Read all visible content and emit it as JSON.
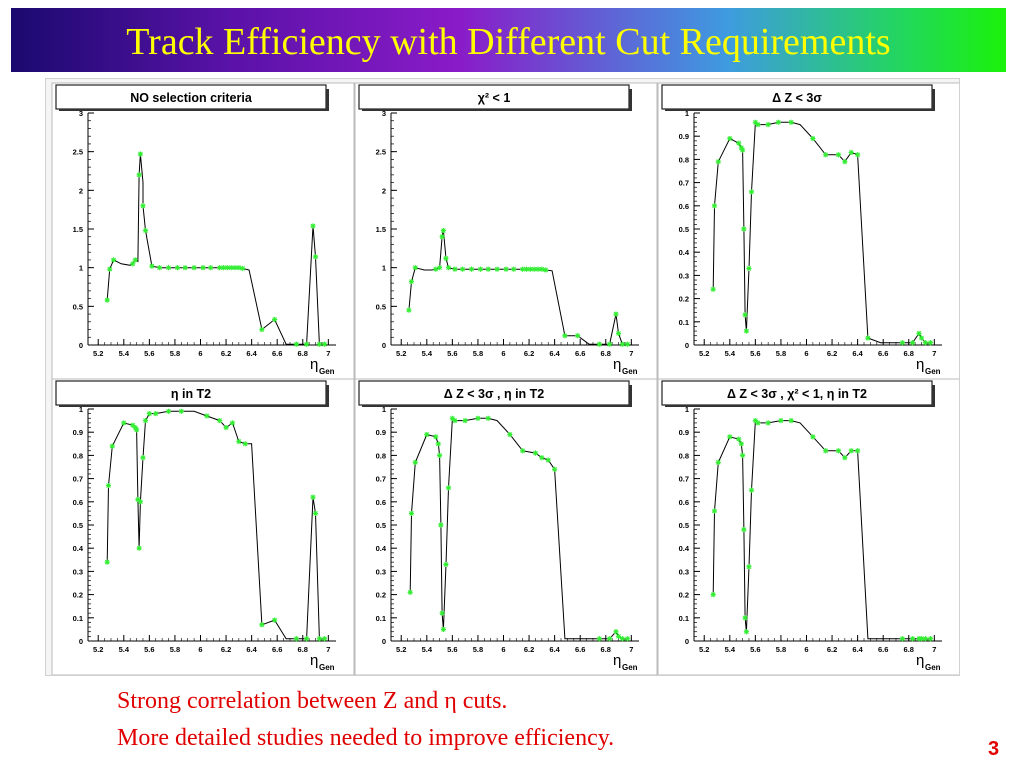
{
  "slide": {
    "title": "Track Efficiency with Different Cut Requirements",
    "notes": [
      "Strong correlation between Z and η cuts.",
      "More detailed studies needed to improve efficiency."
    ],
    "page_number": "3",
    "colors": {
      "title": "#ffff00",
      "notes": "#e00000",
      "markers": "#33ee33",
      "line": "#000000"
    }
  },
  "chart_data": [
    {
      "type": "line",
      "title": "NO selection criteria",
      "xlabel": "η",
      "xlabel_sub": "Gen",
      "xlim": [
        5.12,
        7.06
      ],
      "ylim": [
        0,
        3
      ],
      "xticks": [
        "5.2",
        "5.4",
        "5.6",
        "5.8",
        "6",
        "6.2",
        "6.4",
        "6.6",
        "6.8",
        "7"
      ],
      "yticks": [
        "0",
        "0.5",
        "1",
        "1.5",
        "2",
        "2.5",
        "3"
      ],
      "x": [
        5.27,
        5.29,
        5.32,
        5.38,
        5.45,
        5.47,
        5.49,
        5.51,
        5.52,
        5.53,
        5.55,
        5.55,
        5.57,
        5.62,
        5.68,
        5.75,
        5.82,
        5.88,
        5.95,
        6.02,
        6.08,
        6.15,
        6.18,
        6.21,
        6.24,
        6.27,
        6.3,
        6.33,
        6.38,
        6.48,
        6.58,
        6.67,
        6.75,
        6.83,
        6.88,
        6.9,
        6.93,
        6.97
      ],
      "y": [
        0.58,
        0.98,
        1.1,
        1.05,
        1.03,
        1.05,
        1.1,
        1.08,
        2.2,
        2.47,
        2.1,
        1.8,
        1.48,
        1.02,
        1.0,
        1.0,
        1.0,
        1.0,
        1.0,
        1.0,
        1.0,
        1.0,
        1.0,
        1.0,
        1.0,
        1.0,
        1.0,
        0.99,
        0.97,
        0.2,
        0.33,
        0.01,
        0.01,
        0.01,
        1.54,
        1.14,
        0.01,
        0.01
      ],
      "marker_points": [
        [
          5.27,
          0.58
        ],
        [
          5.29,
          0.98
        ],
        [
          5.32,
          1.1
        ],
        [
          5.47,
          1.05
        ],
        [
          5.49,
          1.1
        ],
        [
          5.52,
          2.2
        ],
        [
          5.53,
          2.47
        ],
        [
          5.55,
          1.8
        ],
        [
          5.57,
          1.48
        ],
        [
          5.62,
          1.02
        ],
        [
          5.68,
          1.0
        ],
        [
          5.75,
          1.0
        ],
        [
          5.82,
          1.0
        ],
        [
          5.88,
          1.0
        ],
        [
          5.95,
          1.0
        ],
        [
          6.02,
          1.0
        ],
        [
          6.08,
          1.0
        ],
        [
          6.15,
          1.0
        ],
        [
          6.18,
          1.0
        ],
        [
          6.21,
          1.0
        ],
        [
          6.24,
          1.0
        ],
        [
          6.27,
          1.0
        ],
        [
          6.3,
          1.0
        ],
        [
          6.33,
          0.99
        ],
        [
          6.48,
          0.2
        ],
        [
          6.58,
          0.33
        ],
        [
          6.75,
          0.01
        ],
        [
          6.83,
          0.01
        ],
        [
          6.88,
          1.54
        ],
        [
          6.9,
          1.14
        ],
        [
          6.93,
          0.01
        ],
        [
          6.97,
          0.01
        ]
      ]
    },
    {
      "type": "line",
      "title": "χ² < 1",
      "xlabel": "η",
      "xlabel_sub": "Gen",
      "xlim": [
        5.12,
        7.06
      ],
      "ylim": [
        0,
        3
      ],
      "xticks": [
        "5.2",
        "5.4",
        "5.6",
        "5.8",
        "6",
        "6.2",
        "6.4",
        "6.6",
        "6.8",
        "7"
      ],
      "yticks": [
        "0",
        "0.5",
        "1",
        "1.5",
        "2",
        "2.5",
        "3"
      ],
      "x": [
        5.26,
        5.28,
        5.31,
        5.38,
        5.44,
        5.47,
        5.5,
        5.52,
        5.53,
        5.55,
        5.57,
        5.62,
        5.68,
        5.75,
        5.82,
        5.88,
        5.95,
        6.02,
        6.08,
        6.15,
        6.18,
        6.21,
        6.24,
        6.27,
        6.3,
        6.33,
        6.38,
        6.48,
        6.58,
        6.67,
        6.75,
        6.83,
        6.88,
        6.9,
        6.93,
        6.97
      ],
      "y": [
        0.45,
        0.82,
        1.0,
        0.97,
        0.97,
        0.98,
        1.0,
        1.4,
        1.48,
        1.12,
        1.0,
        0.98,
        0.98,
        0.98,
        0.98,
        0.98,
        0.98,
        0.98,
        0.98,
        0.98,
        0.98,
        0.98,
        0.98,
        0.98,
        0.98,
        0.97,
        0.96,
        0.12,
        0.12,
        0.01,
        0.01,
        0.01,
        0.4,
        0.15,
        0.01,
        0.01
      ],
      "marker_points": [
        [
          5.26,
          0.45
        ],
        [
          5.28,
          0.82
        ],
        [
          5.31,
          1.0
        ],
        [
          5.47,
          0.98
        ],
        [
          5.5,
          1.0
        ],
        [
          5.52,
          1.4
        ],
        [
          5.53,
          1.48
        ],
        [
          5.55,
          1.12
        ],
        [
          5.57,
          1.0
        ],
        [
          5.62,
          0.98
        ],
        [
          5.68,
          0.98
        ],
        [
          5.75,
          0.98
        ],
        [
          5.82,
          0.98
        ],
        [
          5.88,
          0.98
        ],
        [
          5.95,
          0.98
        ],
        [
          6.02,
          0.98
        ],
        [
          6.08,
          0.98
        ],
        [
          6.15,
          0.98
        ],
        [
          6.18,
          0.98
        ],
        [
          6.21,
          0.98
        ],
        [
          6.24,
          0.98
        ],
        [
          6.27,
          0.98
        ],
        [
          6.3,
          0.98
        ],
        [
          6.33,
          0.97
        ],
        [
          6.48,
          0.12
        ],
        [
          6.58,
          0.12
        ],
        [
          6.75,
          0.01
        ],
        [
          6.83,
          0.01
        ],
        [
          6.88,
          0.4
        ],
        [
          6.9,
          0.15
        ],
        [
          6.93,
          0.01
        ],
        [
          6.97,
          0.01
        ]
      ]
    },
    {
      "type": "line",
      "title": "Δ Z < 3σ",
      "xlabel": "η",
      "xlabel_sub": "Gen",
      "xlim": [
        5.12,
        7.06
      ],
      "ylim": [
        0,
        1
      ],
      "xticks": [
        "5.2",
        "5.4",
        "5.6",
        "5.8",
        "6",
        "6.2",
        "6.4",
        "6.6",
        "6.8",
        "7"
      ],
      "yticks": [
        "0",
        "0.1",
        "0.2",
        "0.3",
        "0.4",
        "0.5",
        "0.6",
        "0.7",
        "0.8",
        "0.9",
        "1"
      ],
      "x": [
        5.27,
        5.28,
        5.31,
        5.4,
        5.47,
        5.49,
        5.5,
        5.51,
        5.52,
        5.53,
        5.55,
        5.57,
        5.6,
        5.62,
        5.7,
        5.78,
        5.88,
        5.95,
        6.05,
        6.15,
        6.25,
        6.3,
        6.35,
        6.4,
        6.48,
        6.58,
        6.67,
        6.75,
        6.83,
        6.88,
        6.9,
        6.93,
        6.97
      ],
      "y": [
        0.24,
        0.6,
        0.79,
        0.89,
        0.87,
        0.85,
        0.84,
        0.5,
        0.13,
        0.06,
        0.33,
        0.66,
        0.96,
        0.95,
        0.95,
        0.96,
        0.96,
        0.95,
        0.89,
        0.82,
        0.82,
        0.79,
        0.83,
        0.82,
        0.03,
        0.01,
        0.01,
        0.01,
        0.01,
        0.05,
        0.03,
        0.01,
        0.01
      ],
      "marker_points": [
        [
          5.27,
          0.24
        ],
        [
          5.28,
          0.6
        ],
        [
          5.31,
          0.79
        ],
        [
          5.4,
          0.89
        ],
        [
          5.47,
          0.87
        ],
        [
          5.49,
          0.85
        ],
        [
          5.5,
          0.84
        ],
        [
          5.51,
          0.5
        ],
        [
          5.52,
          0.13
        ],
        [
          5.53,
          0.06
        ],
        [
          5.55,
          0.33
        ],
        [
          5.57,
          0.66
        ],
        [
          5.6,
          0.96
        ],
        [
          5.62,
          0.95
        ],
        [
          5.7,
          0.95
        ],
        [
          5.78,
          0.96
        ],
        [
          5.88,
          0.96
        ],
        [
          6.05,
          0.89
        ],
        [
          6.15,
          0.82
        ],
        [
          6.25,
          0.82
        ],
        [
          6.3,
          0.79
        ],
        [
          6.35,
          0.83
        ],
        [
          6.4,
          0.82
        ],
        [
          6.48,
          0.03
        ],
        [
          6.75,
          0.01
        ],
        [
          6.83,
          0.01
        ],
        [
          6.88,
          0.05
        ],
        [
          6.9,
          0.03
        ],
        [
          6.93,
          0.01
        ],
        [
          6.97,
          0.01
        ]
      ]
    },
    {
      "type": "line",
      "title": "η in T2",
      "xlabel": "η",
      "xlabel_sub": "Gen",
      "xlim": [
        5.12,
        7.06
      ],
      "ylim": [
        0,
        1
      ],
      "xticks": [
        "5.2",
        "5.4",
        "5.6",
        "5.8",
        "6",
        "6.2",
        "6.4",
        "6.6",
        "6.8",
        "7"
      ],
      "yticks": [
        "0",
        "0.1",
        "0.2",
        "0.3",
        "0.4",
        "0.5",
        "0.6",
        "0.7",
        "0.8",
        "0.9",
        "1"
      ],
      "x": [
        5.27,
        5.28,
        5.31,
        5.4,
        5.47,
        5.49,
        5.5,
        5.51,
        5.52,
        5.53,
        5.55,
        5.57,
        5.6,
        5.65,
        5.75,
        5.85,
        5.95,
        6.05,
        6.15,
        6.2,
        6.25,
        6.3,
        6.35,
        6.4,
        6.48,
        6.58,
        6.67,
        6.75,
        6.83,
        6.88,
        6.9,
        6.93,
        6.97
      ],
      "y": [
        0.34,
        0.67,
        0.84,
        0.94,
        0.93,
        0.92,
        0.91,
        0.61,
        0.4,
        0.6,
        0.79,
        0.95,
        0.98,
        0.98,
        0.99,
        0.99,
        0.99,
        0.97,
        0.95,
        0.92,
        0.94,
        0.86,
        0.85,
        0.85,
        0.07,
        0.09,
        0.01,
        0.01,
        0.01,
        0.62,
        0.55,
        0.01,
        0.01
      ],
      "marker_points": [
        [
          5.27,
          0.34
        ],
        [
          5.28,
          0.67
        ],
        [
          5.31,
          0.84
        ],
        [
          5.4,
          0.94
        ],
        [
          5.47,
          0.93
        ],
        [
          5.49,
          0.92
        ],
        [
          5.5,
          0.91
        ],
        [
          5.51,
          0.61
        ],
        [
          5.52,
          0.4
        ],
        [
          5.53,
          0.6
        ],
        [
          5.55,
          0.79
        ],
        [
          5.57,
          0.95
        ],
        [
          5.6,
          0.98
        ],
        [
          5.65,
          0.98
        ],
        [
          5.75,
          0.99
        ],
        [
          5.85,
          0.99
        ],
        [
          6.05,
          0.97
        ],
        [
          6.15,
          0.95
        ],
        [
          6.2,
          0.92
        ],
        [
          6.25,
          0.94
        ],
        [
          6.3,
          0.86
        ],
        [
          6.35,
          0.85
        ],
        [
          6.48,
          0.07
        ],
        [
          6.58,
          0.09
        ],
        [
          6.75,
          0.01
        ],
        [
          6.83,
          0.01
        ],
        [
          6.88,
          0.62
        ],
        [
          6.9,
          0.55
        ],
        [
          6.93,
          0.01
        ],
        [
          6.97,
          0.01
        ]
      ]
    },
    {
      "type": "line",
      "title": "Δ Z < 3σ , η in T2",
      "xlabel": "η",
      "xlabel_sub": "Gen",
      "xlim": [
        5.12,
        7.06
      ],
      "ylim": [
        0,
        1
      ],
      "xticks": [
        "5.2",
        "5.4",
        "5.6",
        "5.8",
        "6",
        "6.2",
        "6.4",
        "6.6",
        "6.8",
        "7"
      ],
      "yticks": [
        "0",
        "0.1",
        "0.2",
        "0.3",
        "0.4",
        "0.5",
        "0.6",
        "0.7",
        "0.8",
        "0.9",
        "1"
      ],
      "x": [
        5.27,
        5.28,
        5.31,
        5.4,
        5.47,
        5.49,
        5.5,
        5.51,
        5.52,
        5.53,
        5.55,
        5.57,
        5.6,
        5.62,
        5.7,
        5.8,
        5.88,
        5.95,
        6.05,
        6.15,
        6.25,
        6.3,
        6.35,
        6.4,
        6.48,
        6.58,
        6.67,
        6.75,
        6.83,
        6.88,
        6.9,
        6.93,
        6.97
      ],
      "y": [
        0.21,
        0.55,
        0.77,
        0.89,
        0.88,
        0.85,
        0.8,
        0.5,
        0.12,
        0.05,
        0.33,
        0.66,
        0.96,
        0.95,
        0.95,
        0.96,
        0.96,
        0.95,
        0.89,
        0.82,
        0.81,
        0.79,
        0.78,
        0.74,
        0.01,
        0.01,
        0.01,
        0.01,
        0.01,
        0.04,
        0.02,
        0.01,
        0.01
      ],
      "marker_points": [
        [
          5.27,
          0.21
        ],
        [
          5.28,
          0.55
        ],
        [
          5.31,
          0.77
        ],
        [
          5.4,
          0.89
        ],
        [
          5.47,
          0.88
        ],
        [
          5.49,
          0.85
        ],
        [
          5.5,
          0.8
        ],
        [
          5.51,
          0.5
        ],
        [
          5.52,
          0.12
        ],
        [
          5.53,
          0.05
        ],
        [
          5.55,
          0.33
        ],
        [
          5.57,
          0.66
        ],
        [
          5.6,
          0.96
        ],
        [
          5.62,
          0.95
        ],
        [
          5.7,
          0.95
        ],
        [
          5.8,
          0.96
        ],
        [
          5.88,
          0.96
        ],
        [
          6.05,
          0.89
        ],
        [
          6.15,
          0.82
        ],
        [
          6.25,
          0.81
        ],
        [
          6.3,
          0.79
        ],
        [
          6.35,
          0.78
        ],
        [
          6.4,
          0.74
        ],
        [
          6.75,
          0.01
        ],
        [
          6.83,
          0.01
        ],
        [
          6.88,
          0.04
        ],
        [
          6.9,
          0.02
        ],
        [
          6.93,
          0.01
        ],
        [
          6.97,
          0.01
        ]
      ]
    },
    {
      "type": "line",
      "title": "Δ Z < 3σ , χ² < 1, η in T2",
      "xlabel": "η",
      "xlabel_sub": "Gen",
      "xlim": [
        5.12,
        7.06
      ],
      "ylim": [
        0,
        1
      ],
      "xticks": [
        "5.2",
        "5.4",
        "5.6",
        "5.8",
        "6",
        "6.2",
        "6.4",
        "6.6",
        "6.8",
        "7"
      ],
      "yticks": [
        "0",
        "0.1",
        "0.2",
        "0.3",
        "0.4",
        "0.5",
        "0.6",
        "0.7",
        "0.8",
        "0.9",
        "1"
      ],
      "x": [
        5.27,
        5.28,
        5.31,
        5.4,
        5.47,
        5.49,
        5.5,
        5.51,
        5.52,
        5.53,
        5.55,
        5.57,
        5.6,
        5.62,
        5.7,
        5.8,
        5.88,
        5.95,
        6.05,
        6.15,
        6.25,
        6.3,
        6.35,
        6.4,
        6.48,
        6.58,
        6.67,
        6.75,
        6.83,
        6.88,
        6.9,
        6.93,
        6.97
      ],
      "y": [
        0.2,
        0.56,
        0.77,
        0.88,
        0.87,
        0.85,
        0.8,
        0.48,
        0.1,
        0.04,
        0.32,
        0.65,
        0.95,
        0.94,
        0.94,
        0.95,
        0.95,
        0.94,
        0.88,
        0.82,
        0.82,
        0.79,
        0.82,
        0.82,
        0.01,
        0.01,
        0.01,
        0.01,
        0.01,
        0.01,
        0.01,
        0.01,
        0.01
      ],
      "marker_points": [
        [
          5.27,
          0.2
        ],
        [
          5.28,
          0.56
        ],
        [
          5.31,
          0.77
        ],
        [
          5.4,
          0.88
        ],
        [
          5.47,
          0.87
        ],
        [
          5.49,
          0.85
        ],
        [
          5.5,
          0.8
        ],
        [
          5.51,
          0.48
        ],
        [
          5.52,
          0.1
        ],
        [
          5.53,
          0.04
        ],
        [
          5.55,
          0.32
        ],
        [
          5.57,
          0.65
        ],
        [
          5.6,
          0.95
        ],
        [
          5.62,
          0.94
        ],
        [
          5.7,
          0.94
        ],
        [
          5.8,
          0.95
        ],
        [
          5.88,
          0.95
        ],
        [
          6.05,
          0.88
        ],
        [
          6.15,
          0.82
        ],
        [
          6.25,
          0.82
        ],
        [
          6.3,
          0.79
        ],
        [
          6.35,
          0.82
        ],
        [
          6.4,
          0.82
        ],
        [
          6.75,
          0.01
        ],
        [
          6.83,
          0.01
        ],
        [
          6.88,
          0.01
        ],
        [
          6.9,
          0.01
        ],
        [
          6.93,
          0.01
        ],
        [
          6.97,
          0.01
        ]
      ]
    }
  ]
}
